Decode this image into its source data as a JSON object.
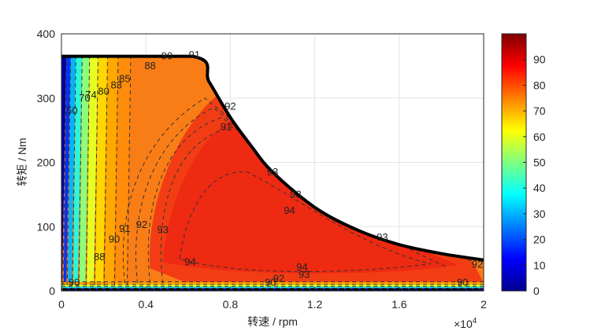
{
  "chart_data": {
    "type": "contour",
    "title": "",
    "xlabel": "转速 / rpm",
    "ylabel": "转矩 / Nm",
    "x_exponent_label": "×10",
    "x_exponent_power": "4",
    "xlim": [
      0,
      2
    ],
    "ylim": [
      0,
      400
    ],
    "xticks": [
      "0",
      "0.4",
      "0.8",
      "1.2",
      "1.6",
      "2"
    ],
    "yticks": [
      "0",
      "100",
      "200",
      "300",
      "400"
    ],
    "colorbar": {
      "range": [
        0,
        100
      ],
      "ticks": [
        "0",
        "10",
        "20",
        "30",
        "40",
        "50",
        "60",
        "70",
        "80",
        "90"
      ]
    },
    "grid": true,
    "torque_envelope": {
      "max_torque_nm": 365,
      "base_speed_x1e4_rpm": 0.62,
      "speed_x1e4_rpm": [
        0,
        0.62,
        0.7,
        0.8,
        0.9,
        1.0,
        1.2,
        1.4,
        1.6,
        1.8,
        2.0
      ],
      "torque_nm": [
        365,
        365,
        325,
        270,
        225,
        185,
        130,
        95,
        72,
        58,
        48
      ]
    },
    "efficiency_peak": 94,
    "contour_levels": [
      50,
      70,
      74,
      80,
      83,
      85,
      88,
      90,
      91,
      92,
      93,
      94
    ],
    "contour_labels": [
      {
        "text": "50",
        "x": 0.05,
        "y": 275
      },
      {
        "text": "70",
        "x": 0.11,
        "y": 295
      },
      {
        "text": "74",
        "x": 0.14,
        "y": 300
      },
      {
        "text": "80",
        "x": 0.2,
        "y": 305
      },
      {
        "text": "83",
        "x": 0.26,
        "y": 315
      },
      {
        "text": "85",
        "x": 0.3,
        "y": 325
      },
      {
        "text": "88",
        "x": 0.42,
        "y": 345
      },
      {
        "text": "90",
        "x": 0.5,
        "y": 360
      },
      {
        "text": "91",
        "x": 0.63,
        "y": 362
      },
      {
        "text": "88",
        "x": 0.18,
        "y": 48
      },
      {
        "text": "90",
        "x": 0.25,
        "y": 75
      },
      {
        "text": "91",
        "x": 0.3,
        "y": 92
      },
      {
        "text": "92",
        "x": 0.38,
        "y": 98
      },
      {
        "text": "93",
        "x": 0.48,
        "y": 90
      },
      {
        "text": "94",
        "x": 0.61,
        "y": 40
      },
      {
        "text": "94",
        "x": 1.14,
        "y": 32
      },
      {
        "text": "93",
        "x": 1.15,
        "y": 20
      },
      {
        "text": "92",
        "x": 1.03,
        "y": 14
      },
      {
        "text": "92",
        "x": 0.8,
        "y": 282
      },
      {
        "text": "91",
        "x": 0.78,
        "y": 250
      },
      {
        "text": "93",
        "x": 1.0,
        "y": 180
      },
      {
        "text": "93",
        "x": 1.11,
        "y": 145
      },
      {
        "text": "94",
        "x": 1.08,
        "y": 120
      },
      {
        "text": "93",
        "x": 1.52,
        "y": 78
      },
      {
        "text": "92",
        "x": 1.97,
        "y": 36
      },
      {
        "text": "90",
        "x": 0.06,
        "y": 8
      },
      {
        "text": "90",
        "x": 1.9,
        "y": 8
      },
      {
        "text": "90",
        "x": 0.99,
        "y": 8
      }
    ]
  }
}
